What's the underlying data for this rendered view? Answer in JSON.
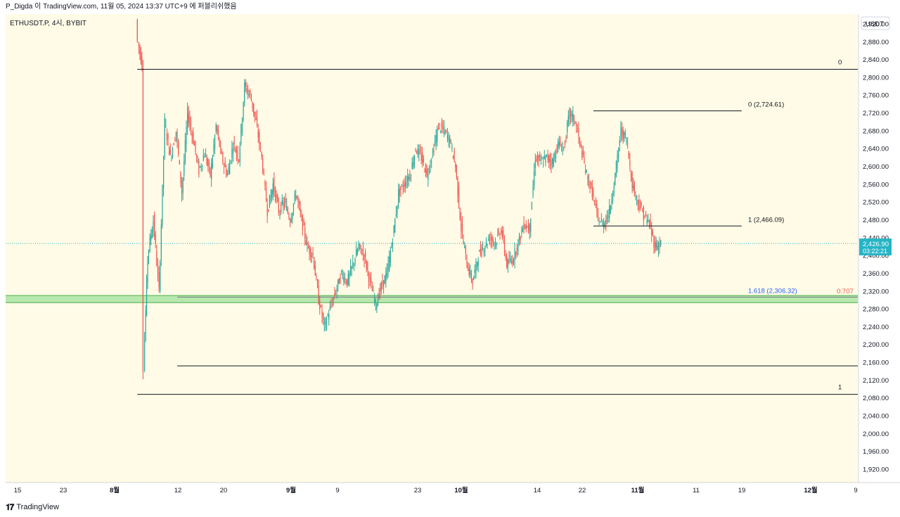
{
  "header": {
    "caption": "P_Digda 이 TradingView.com, 11월 05, 2024 13:37 UTC+9 에 퍼블리쉬했음"
  },
  "footer": {
    "brand": "TradingView",
    "logo_icon": "tradingview-logo-icon"
  },
  "colors": {
    "plot_bg": "#fffbe6",
    "up": "#26a69a",
    "down": "#ef5350",
    "price_tag": "#26b5c6",
    "fib_green_fill": "#a5e3a0",
    "fib_1618_text": "#2962ff",
    "fib_0707_text": "#ef5350"
  },
  "chart_data": {
    "type": "candlestick",
    "symbol_label": "ETHUSDT.P, 4시, BYBIT",
    "price_axis_unit": "USDT",
    "x_axis_ticks": [
      "15",
      "23",
      "8월",
      "12",
      "20",
      "9월",
      "9",
      "23",
      "10월",
      "14",
      "22",
      "11월",
      "11",
      "19",
      "12월",
      "9"
    ],
    "y_axis_ticks": [
      "2,920.00",
      "2,880.00",
      "2,840.00",
      "2,800.00",
      "2,760.00",
      "2,720.00",
      "2,680.00",
      "2,640.00",
      "2,600.00",
      "2,560.00",
      "2,520.00",
      "2,480.00",
      "2,440.00",
      "2,400.00",
      "2,360.00",
      "2,320.00",
      "2,280.00",
      "2,240.00",
      "2,200.00",
      "2,160.00",
      "2,120.00",
      "2,080.00",
      "2,040.00",
      "2,000.00",
      "1,960.00",
      "1,920.00"
    ],
    "y_axis_values": [
      2920,
      2880,
      2840,
      2800,
      2760,
      2720,
      2680,
      2640,
      2600,
      2560,
      2520,
      2480,
      2440,
      2400,
      2360,
      2320,
      2280,
      2240,
      2200,
      2160,
      2120,
      2080,
      2040,
      2000,
      1960,
      1920
    ],
    "ylim": [
      1890,
      2942
    ],
    "last_price": 2426.9,
    "last_price_label": "2,426.90",
    "countdown_label": "03:22:21",
    "price_path": [
      {
        "date": "2024-08-05",
        "price": 2930
      },
      {
        "date": "2024-08-05",
        "price": 2880
      },
      {
        "date": "2024-08-06",
        "price": 2830
      },
      {
        "date": "2024-08-06",
        "price": 2150
      },
      {
        "date": "2024-08-07",
        "price": 2400
      },
      {
        "date": "2024-08-08",
        "price": 2480
      },
      {
        "date": "2024-08-09",
        "price": 2320
      },
      {
        "date": "2024-08-10",
        "price": 2700
      },
      {
        "date": "2024-08-11",
        "price": 2620
      },
      {
        "date": "2024-08-12",
        "price": 2680
      },
      {
        "date": "2024-08-13",
        "price": 2540
      },
      {
        "date": "2024-08-14",
        "price": 2720
      },
      {
        "date": "2024-08-15",
        "price": 2660
      },
      {
        "date": "2024-08-16",
        "price": 2590
      },
      {
        "date": "2024-08-17",
        "price": 2630
      },
      {
        "date": "2024-08-18",
        "price": 2580
      },
      {
        "date": "2024-08-19",
        "price": 2690
      },
      {
        "date": "2024-08-20",
        "price": 2620
      },
      {
        "date": "2024-08-21",
        "price": 2580
      },
      {
        "date": "2024-08-22",
        "price": 2650
      },
      {
        "date": "2024-08-23",
        "price": 2620
      },
      {
        "date": "2024-08-24",
        "price": 2780
      },
      {
        "date": "2024-08-25",
        "price": 2760
      },
      {
        "date": "2024-08-26",
        "price": 2700
      },
      {
        "date": "2024-08-27",
        "price": 2620
      },
      {
        "date": "2024-08-28",
        "price": 2500
      },
      {
        "date": "2024-08-29",
        "price": 2560
      },
      {
        "date": "2024-08-30",
        "price": 2500
      },
      {
        "date": "2024-08-31",
        "price": 2520
      },
      {
        "date": "2024-09-01",
        "price": 2480
      },
      {
        "date": "2024-09-02",
        "price": 2540
      },
      {
        "date": "2024-09-03",
        "price": 2480
      },
      {
        "date": "2024-09-04",
        "price": 2420
      },
      {
        "date": "2024-09-05",
        "price": 2400
      },
      {
        "date": "2024-09-06",
        "price": 2300
      },
      {
        "date": "2024-09-07",
        "price": 2240
      },
      {
        "date": "2024-09-08",
        "price": 2280
      },
      {
        "date": "2024-09-09",
        "price": 2320
      },
      {
        "date": "2024-09-10",
        "price": 2360
      },
      {
        "date": "2024-09-11",
        "price": 2340
      },
      {
        "date": "2024-09-12",
        "price": 2380
      },
      {
        "date": "2024-09-13",
        "price": 2420
      },
      {
        "date": "2024-09-14",
        "price": 2400
      },
      {
        "date": "2024-09-15",
        "price": 2340
      },
      {
        "date": "2024-09-16",
        "price": 2290
      },
      {
        "date": "2024-09-17",
        "price": 2330
      },
      {
        "date": "2024-09-18",
        "price": 2360
      },
      {
        "date": "2024-09-19",
        "price": 2440
      },
      {
        "date": "2024-09-20",
        "price": 2540
      },
      {
        "date": "2024-09-21",
        "price": 2560
      },
      {
        "date": "2024-09-22",
        "price": 2580
      },
      {
        "date": "2024-09-23",
        "price": 2640
      },
      {
        "date": "2024-09-24",
        "price": 2620
      },
      {
        "date": "2024-09-25",
        "price": 2580
      },
      {
        "date": "2024-09-26",
        "price": 2630
      },
      {
        "date": "2024-09-27",
        "price": 2690
      },
      {
        "date": "2024-09-28",
        "price": 2680
      },
      {
        "date": "2024-09-29",
        "price": 2660
      },
      {
        "date": "2024-09-30",
        "price": 2600
      },
      {
        "date": "2024-10-01",
        "price": 2460
      },
      {
        "date": "2024-10-02",
        "price": 2380
      },
      {
        "date": "2024-10-03",
        "price": 2340
      },
      {
        "date": "2024-10-04",
        "price": 2400
      },
      {
        "date": "2024-10-05",
        "price": 2420
      },
      {
        "date": "2024-10-06",
        "price": 2440
      },
      {
        "date": "2024-10-07",
        "price": 2430
      },
      {
        "date": "2024-10-08",
        "price": 2460
      },
      {
        "date": "2024-10-09",
        "price": 2380
      },
      {
        "date": "2024-10-10",
        "price": 2390
      },
      {
        "date": "2024-10-11",
        "price": 2430
      },
      {
        "date": "2024-10-12",
        "price": 2470
      },
      {
        "date": "2024-10-13",
        "price": 2460
      },
      {
        "date": "2024-10-14",
        "price": 2620
      },
      {
        "date": "2024-10-15",
        "price": 2610
      },
      {
        "date": "2024-10-16",
        "price": 2620
      },
      {
        "date": "2024-10-17",
        "price": 2610
      },
      {
        "date": "2024-10-18",
        "price": 2650
      },
      {
        "date": "2024-10-19",
        "price": 2640
      },
      {
        "date": "2024-10-20",
        "price": 2720
      },
      {
        "date": "2024-10-21",
        "price": 2700
      },
      {
        "date": "2024-10-22",
        "price": 2640
      },
      {
        "date": "2024-10-23",
        "price": 2580
      },
      {
        "date": "2024-10-24",
        "price": 2540
      },
      {
        "date": "2024-10-25",
        "price": 2480
      },
      {
        "date": "2024-10-26",
        "price": 2470
      },
      {
        "date": "2024-10-27",
        "price": 2500
      },
      {
        "date": "2024-10-28",
        "price": 2580
      },
      {
        "date": "2024-10-29",
        "price": 2680
      },
      {
        "date": "2024-10-30",
        "price": 2660
      },
      {
        "date": "2024-10-31",
        "price": 2560
      },
      {
        "date": "2024-11-01",
        "price": 2520
      },
      {
        "date": "2024-11-02",
        "price": 2490
      },
      {
        "date": "2024-11-03",
        "price": 2470
      },
      {
        "date": "2024-11-04",
        "price": 2420
      },
      {
        "date": "2024-11-05",
        "price": 2427
      }
    ],
    "horizontal_lines": [
      {
        "price": 2818,
        "from": "2024-08-05",
        "to": "2024-12-12",
        "label": "0"
      },
      {
        "price": 2088,
        "from": "2024-08-05",
        "to": "2024-12-10",
        "label": "1"
      },
      {
        "price": 2152,
        "from": "2024-08-12",
        "to": "2024-12-12",
        "label": ""
      },
      {
        "price": 2724.61,
        "from": "2024-10-24",
        "to": "2024-11-19",
        "label": "0 (2,724.61)"
      },
      {
        "price": 2466.09,
        "from": "2024-10-24",
        "to": "2024-11-19",
        "label": "1 (2,466.09)"
      },
      {
        "price": 2306.32,
        "from": "2024-08-12",
        "to": "2024-12-12",
        "label": "1.618 (2,306.32)"
      }
    ],
    "fib_zone": {
      "low": 2294,
      "high": 2310,
      "label": "0.707"
    },
    "last_price_dotted_line": 2426.9
  }
}
